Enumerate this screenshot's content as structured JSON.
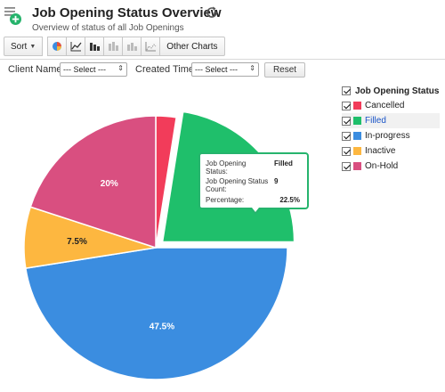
{
  "header": {
    "title": "Job Opening Status Overview",
    "subtitle": "Overview of status of all Job Openings"
  },
  "toolbar": {
    "sort_label": "Sort",
    "other_charts_label": "Other Charts"
  },
  "filters": {
    "client_label": "Client Name:",
    "client_value": "--- Select ---",
    "created_label": "Created Time:",
    "created_value": "--- Select ---",
    "reset_label": "Reset"
  },
  "legend": {
    "title": "Job Opening Status",
    "items": [
      {
        "label": "Cancelled",
        "color": "#f23c5a",
        "checked": true
      },
      {
        "label": "Filled",
        "color": "#1fbf6b",
        "checked": true
      },
      {
        "label": "In-progress",
        "color": "#3b8de0",
        "checked": true
      },
      {
        "label": "Inactive",
        "color": "#fdb740",
        "checked": true
      },
      {
        "label": "On-Hold",
        "color": "#d94f80",
        "checked": true
      }
    ]
  },
  "tooltip": {
    "status_label": "Job Opening Status:",
    "status_value": "Filled",
    "count_label": "Job Opening Status Count:",
    "count_value": "9",
    "pct_label": "Percentage:",
    "pct_value": "22.5%"
  },
  "chart_data": {
    "type": "pie",
    "title": "",
    "series": [
      {
        "name": "Cancelled",
        "value": 1,
        "percent": 2.5,
        "label": "",
        "color": "#f23c5a"
      },
      {
        "name": "Filled",
        "value": 9,
        "percent": 22.5,
        "label": "",
        "color": "#1fbf6b",
        "exploded": true
      },
      {
        "name": "In-progress",
        "value": 19,
        "percent": 47.5,
        "label": "47.5%",
        "color": "#3b8de0"
      },
      {
        "name": "Inactive",
        "value": 3,
        "percent": 7.5,
        "label": "7.5%",
        "color": "#fdb740"
      },
      {
        "name": "On-Hold",
        "value": 8,
        "percent": 20,
        "label": "20%",
        "color": "#d94f80"
      }
    ]
  }
}
